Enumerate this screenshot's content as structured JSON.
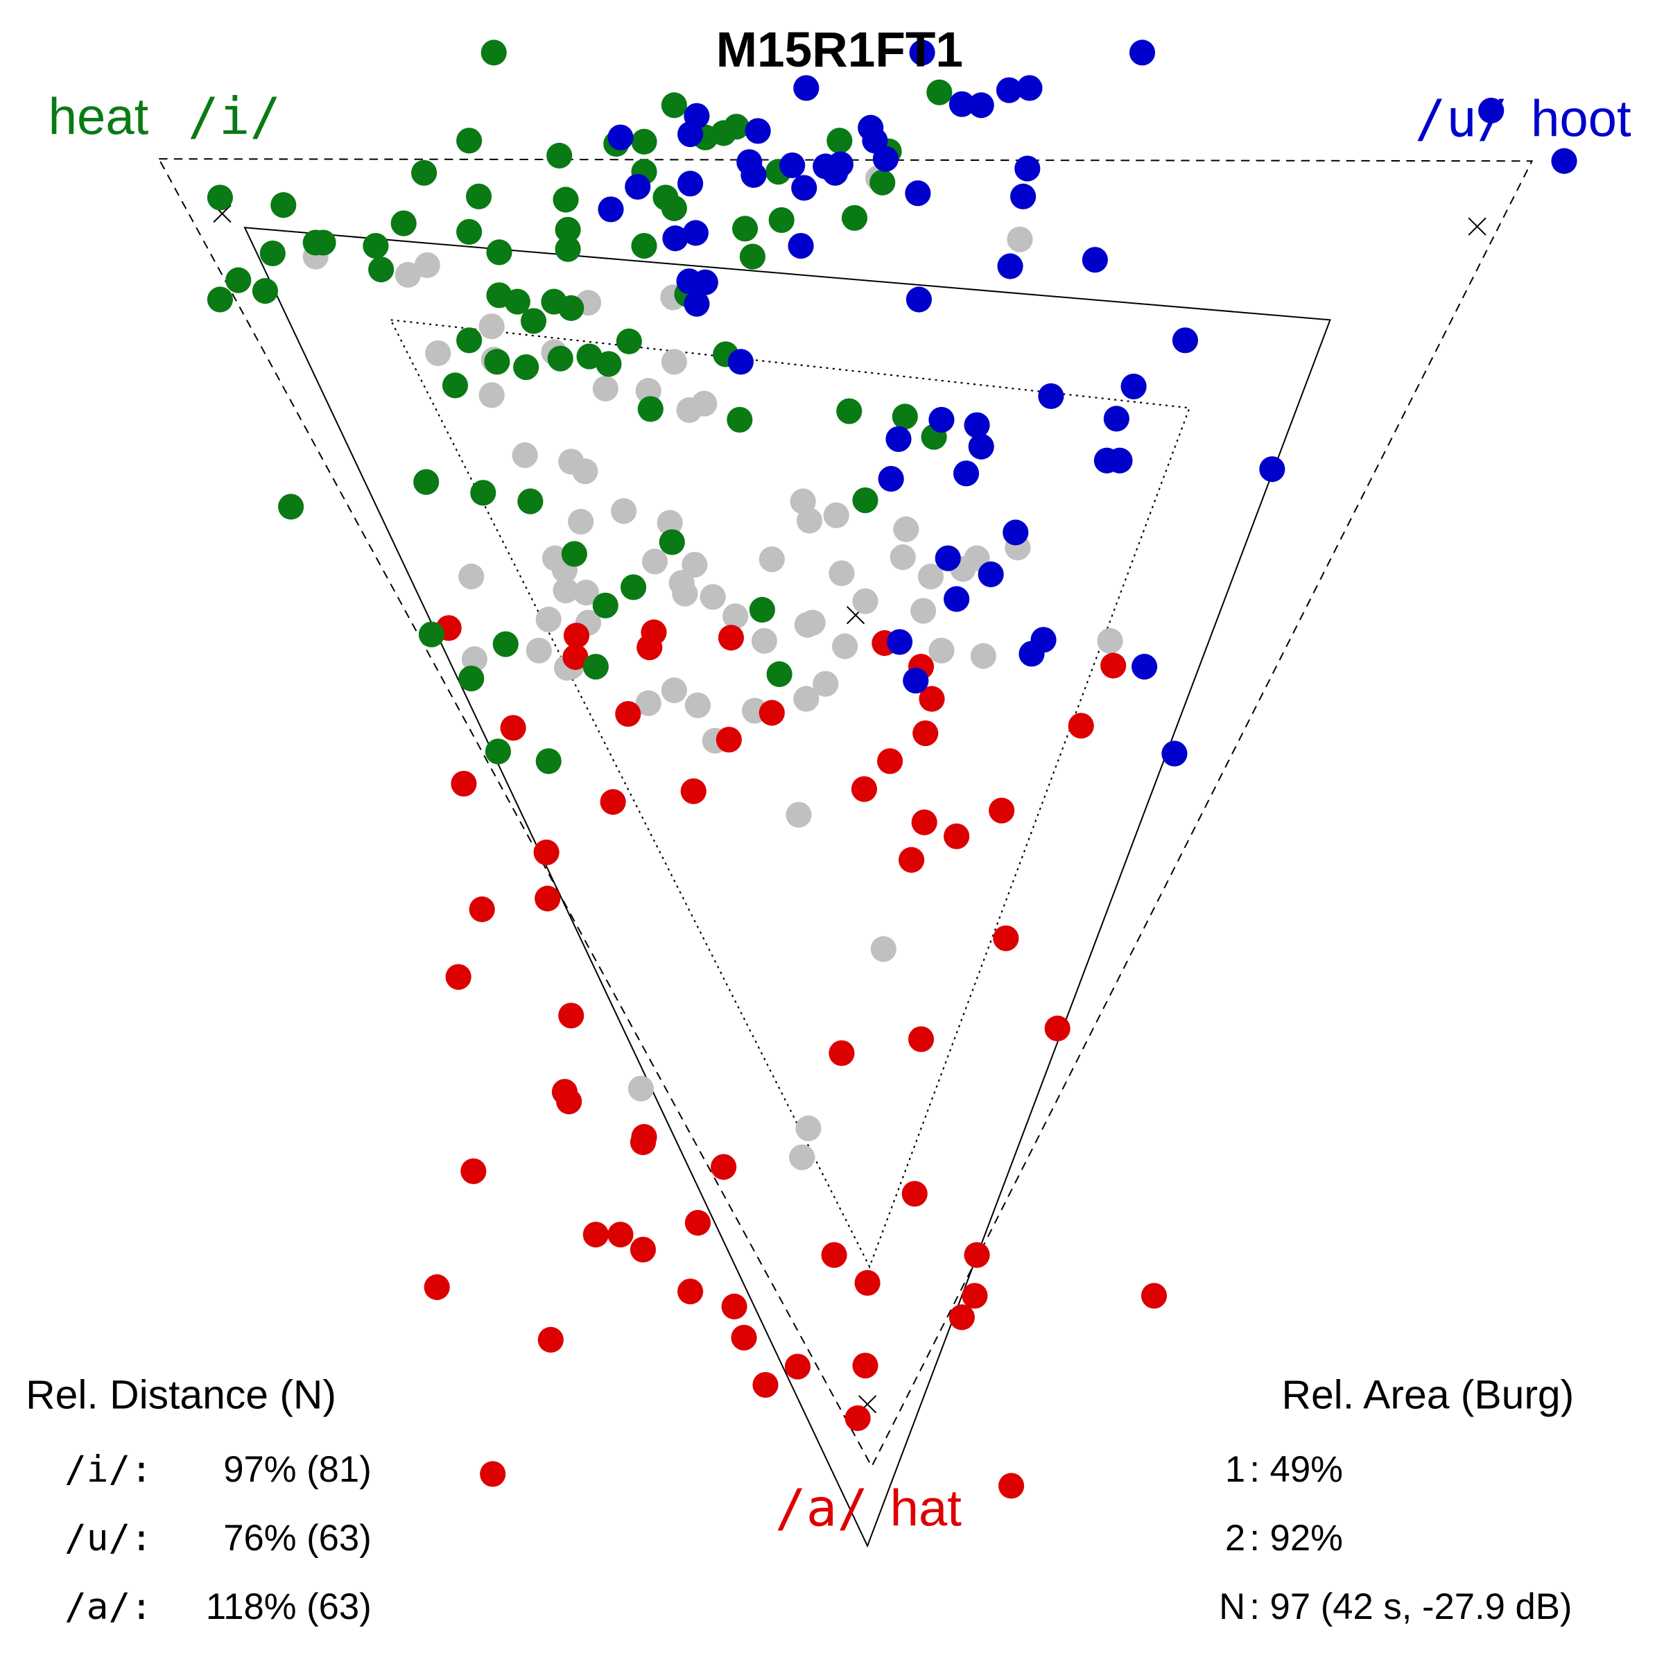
{
  "chart_data": {
    "type": "scatter",
    "title": "M15R1FT1",
    "axis_note": "vowel triangle, no visible axes",
    "coord_space": {
      "x": [
        0,
        1550
      ],
      "y": [
        0,
        1550
      ]
    },
    "corners": {
      "i": {
        "symbol": "/i/",
        "word": "heat",
        "color": "#0a7a14"
      },
      "u": {
        "symbol": "/u/",
        "word": "hoot",
        "color": "#0000cc"
      },
      "a": {
        "symbol": "/a/",
        "word": "hat",
        "color": "#dd0000"
      }
    },
    "other_color": "#c0c0c0",
    "triangles": [
      {
        "name": "reference-dashed",
        "style": "dashed",
        "points": [
          [
            148,
            148
          ],
          [
            1427,
            150
          ],
          [
            812,
            1366
          ]
        ]
      },
      {
        "name": "measured-solid",
        "style": "solid",
        "points": [
          [
            228,
            212
          ],
          [
            1239,
            298
          ],
          [
            808,
            1440
          ]
        ]
      },
      {
        "name": "inner-dotted",
        "style": "dotted",
        "points": [
          [
            364,
            298
          ],
          [
            1108,
            380
          ],
          [
            810,
            1180
          ]
        ]
      }
    ],
    "markers": [
      [
        207,
        199
      ],
      [
        1376,
        211
      ],
      [
        797,
        573
      ],
      [
        808,
        1308
      ]
    ],
    "series": [
      {
        "name": "i-heat",
        "color": "#0a7a14",
        "points": [
          [
            460,
            49
          ],
          [
            628,
            98
          ],
          [
            875,
            86
          ],
          [
            686,
            118
          ],
          [
            674,
            124
          ],
          [
            657,
            128
          ],
          [
            600,
            132
          ],
          [
            437,
            131
          ],
          [
            521,
            145
          ],
          [
            782,
            131
          ],
          [
            828,
            141
          ],
          [
            205,
            184
          ],
          [
            264,
            191
          ],
          [
            395,
            161
          ],
          [
            446,
            183
          ],
          [
            527,
            186
          ],
          [
            600,
            160
          ],
          [
            574,
            134
          ],
          [
            620,
            184
          ],
          [
            628,
            194
          ],
          [
            822,
            170
          ],
          [
            725,
            160
          ],
          [
            600,
            229
          ],
          [
            529,
            214
          ],
          [
            376,
            208
          ],
          [
            437,
            216
          ],
          [
            465,
            235
          ],
          [
            529,
            232
          ],
          [
            694,
            213
          ],
          [
            728,
            205
          ],
          [
            796,
            203
          ],
          [
            701,
            239
          ],
          [
            254,
            236
          ],
          [
            301,
            226
          ],
          [
            294,
            226
          ],
          [
            350,
            229
          ],
          [
            355,
            251
          ],
          [
            222,
            261
          ],
          [
            205,
            279
          ],
          [
            247,
            271
          ],
          [
            465,
            275
          ],
          [
            482,
            281
          ],
          [
            516,
            281
          ],
          [
            532,
            287
          ],
          [
            497,
            299
          ],
          [
            640,
            274
          ],
          [
            437,
            317
          ],
          [
            463,
            337
          ],
          [
            490,
            342
          ],
          [
            522,
            334
          ],
          [
            549,
            332
          ],
          [
            567,
            339
          ],
          [
            586,
            318
          ],
          [
            424,
            359
          ],
          [
            606,
            381
          ],
          [
            676,
            330
          ],
          [
            689,
            391
          ],
          [
            791,
            383
          ],
          [
            843,
            388
          ],
          [
            870,
            407
          ],
          [
            397,
            449
          ],
          [
            450,
            459
          ],
          [
            494,
            467
          ],
          [
            271,
            472
          ],
          [
            806,
            466
          ],
          [
            626,
            505
          ],
          [
            535,
            516
          ],
          [
            590,
            547
          ],
          [
            564,
            564
          ],
          [
            710,
            568
          ],
          [
            402,
            591
          ],
          [
            471,
            600
          ],
          [
            439,
            632
          ],
          [
            555,
            621
          ],
          [
            726,
            628
          ],
          [
            464,
            700
          ],
          [
            511,
            709
          ]
        ]
      },
      {
        "name": "u-hoot",
        "color": "#0000cc",
        "points": [
          [
            859,
            49
          ],
          [
            1064,
            49
          ],
          [
            751,
            82
          ],
          [
            940,
            84
          ],
          [
            959,
            82
          ],
          [
            896,
            97
          ],
          [
            914,
            98
          ],
          [
            1389,
            103
          ],
          [
            706,
            122
          ],
          [
            649,
            108
          ],
          [
            643,
            125
          ],
          [
            578,
            128
          ],
          [
            811,
            119
          ],
          [
            815,
            131
          ],
          [
            825,
            148
          ],
          [
            698,
            151
          ],
          [
            702,
            163
          ],
          [
            643,
            171
          ],
          [
            594,
            174
          ],
          [
            738,
            154
          ],
          [
            749,
            175
          ],
          [
            769,
            155
          ],
          [
            778,
            161
          ],
          [
            783,
            153
          ],
          [
            957,
            157
          ],
          [
            855,
            180
          ],
          [
            953,
            183
          ],
          [
            1457,
            150
          ],
          [
            569,
            195
          ],
          [
            629,
            222
          ],
          [
            648,
            217
          ],
          [
            746,
            229
          ],
          [
            941,
            248
          ],
          [
            1020,
            242
          ],
          [
            642,
            262
          ],
          [
            657,
            263
          ],
          [
            649,
            283
          ],
          [
            856,
            279
          ],
          [
            690,
            337
          ],
          [
            1104,
            317
          ],
          [
            979,
            369
          ],
          [
            1056,
            360
          ],
          [
            877,
            391
          ],
          [
            910,
            396
          ],
          [
            1040,
            390
          ],
          [
            837,
            409
          ],
          [
            914,
            416
          ],
          [
            900,
            441
          ],
          [
            1031,
            429
          ],
          [
            1043,
            429
          ],
          [
            830,
            446
          ],
          [
            1185,
            437
          ],
          [
            946,
            496
          ],
          [
            883,
            520
          ],
          [
            923,
            535
          ],
          [
            891,
            558
          ],
          [
            838,
            598
          ],
          [
            972,
            596
          ],
          [
            961,
            609
          ],
          [
            1066,
            621
          ],
          [
            853,
            634
          ],
          [
            1094,
            702
          ]
        ]
      },
      {
        "name": "a-hat",
        "color": "#dd0000",
        "points": [
          [
            418,
            585
          ],
          [
            537,
            592
          ],
          [
            609,
            589
          ],
          [
            605,
            603
          ],
          [
            536,
            612
          ],
          [
            681,
            594
          ],
          [
            824,
            599
          ],
          [
            858,
            621
          ],
          [
            1037,
            620
          ],
          [
            868,
            651
          ],
          [
            585,
            665
          ],
          [
            719,
            664
          ],
          [
            478,
            678
          ],
          [
            862,
            683
          ],
          [
            679,
            689
          ],
          [
            1007,
            676
          ],
          [
            829,
            709
          ],
          [
            432,
            730
          ],
          [
            571,
            747
          ],
          [
            646,
            737
          ],
          [
            805,
            735
          ],
          [
            933,
            755
          ],
          [
            861,
            766
          ],
          [
            891,
            779
          ],
          [
            849,
            801
          ],
          [
            509,
            794
          ],
          [
            510,
            837
          ],
          [
            449,
            847
          ],
          [
            937,
            874
          ],
          [
            427,
            910
          ],
          [
            532,
            946
          ],
          [
            985,
            958
          ],
          [
            858,
            968
          ],
          [
            784,
            981
          ],
          [
            526,
            1017
          ],
          [
            530,
            1026
          ],
          [
            600,
            1059
          ],
          [
            599,
            1064
          ],
          [
            441,
            1091
          ],
          [
            674,
            1087
          ],
          [
            852,
            1112
          ],
          [
            650,
            1139
          ],
          [
            555,
            1150
          ],
          [
            578,
            1150
          ],
          [
            599,
            1164
          ],
          [
            777,
            1169
          ],
          [
            910,
            1169
          ],
          [
            808,
            1195
          ],
          [
            407,
            1199
          ],
          [
            643,
            1203
          ],
          [
            684,
            1217
          ],
          [
            908,
            1207
          ],
          [
            896,
            1227
          ],
          [
            1075,
            1207
          ],
          [
            693,
            1246
          ],
          [
            513,
            1248
          ],
          [
            806,
            1272
          ],
          [
            743,
            1273
          ],
          [
            713,
            1290
          ],
          [
            799,
            1321
          ],
          [
            459,
            1373
          ],
          [
            942,
            1384
          ]
        ]
      },
      {
        "name": "other",
        "color": "#c0c0c0",
        "points": [
          [
            818,
            166
          ],
          [
            950,
            223
          ],
          [
            294,
            239
          ],
          [
            380,
            256
          ],
          [
            398,
            247
          ],
          [
            548,
            282
          ],
          [
            627,
            277
          ],
          [
            458,
            304
          ],
          [
            408,
            329
          ],
          [
            460,
            335
          ],
          [
            516,
            328
          ],
          [
            628,
            337
          ],
          [
            458,
            368
          ],
          [
            564,
            362
          ],
          [
            604,
            364
          ],
          [
            642,
            382
          ],
          [
            656,
            376
          ],
          [
            489,
            424
          ],
          [
            532,
            430
          ],
          [
            545,
            439
          ],
          [
            748,
            467
          ],
          [
            779,
            480
          ],
          [
            754,
            485
          ],
          [
            844,
            493
          ],
          [
            541,
            486
          ],
          [
            581,
            476
          ],
          [
            624,
            487
          ],
          [
            517,
            520
          ],
          [
            526,
            531
          ],
          [
            610,
            523
          ],
          [
            647,
            526
          ],
          [
            719,
            521
          ],
          [
            784,
            534
          ],
          [
            841,
            519
          ],
          [
            910,
            520
          ],
          [
            948,
            510
          ],
          [
            867,
            537
          ],
          [
            897,
            530
          ],
          [
            439,
            537
          ],
          [
            527,
            550
          ],
          [
            546,
            552
          ],
          [
            635,
            543
          ],
          [
            638,
            553
          ],
          [
            664,
            556
          ],
          [
            806,
            560
          ],
          [
            860,
            569
          ],
          [
            685,
            574
          ],
          [
            511,
            577
          ],
          [
            548,
            580
          ],
          [
            752,
            582
          ],
          [
            757,
            580
          ],
          [
            712,
            597
          ],
          [
            787,
            602
          ],
          [
            877,
            606
          ],
          [
            916,
            611
          ],
          [
            1034,
            597
          ],
          [
            502,
            606
          ],
          [
            442,
            614
          ],
          [
            532,
            621
          ],
          [
            528,
            622
          ],
          [
            604,
            655
          ],
          [
            628,
            643
          ],
          [
            650,
            657
          ],
          [
            703,
            662
          ],
          [
            751,
            651
          ],
          [
            769,
            637
          ],
          [
            666,
            690
          ],
          [
            744,
            759
          ],
          [
            823,
            884
          ],
          [
            597,
            1014
          ],
          [
            753,
            1051
          ],
          [
            747,
            1078
          ]
        ]
      }
    ],
    "rel_distance": {
      "title": "Rel. Distance (N)",
      "rows": [
        {
          "label": "/i/:",
          "value": "97% (81)"
        },
        {
          "label": "/u/:",
          "value": "76% (63)"
        },
        {
          "label": "/a/:",
          "value": "118% (63)"
        }
      ]
    },
    "rel_area": {
      "title": "Rel. Area (Burg)",
      "rows": [
        {
          "label": "1",
          "value": ": 49%"
        },
        {
          "label": "2",
          "value": ": 92%"
        },
        {
          "label": "N",
          "value": ": 97 (42 s, -27.9 dB)"
        }
      ]
    }
  }
}
